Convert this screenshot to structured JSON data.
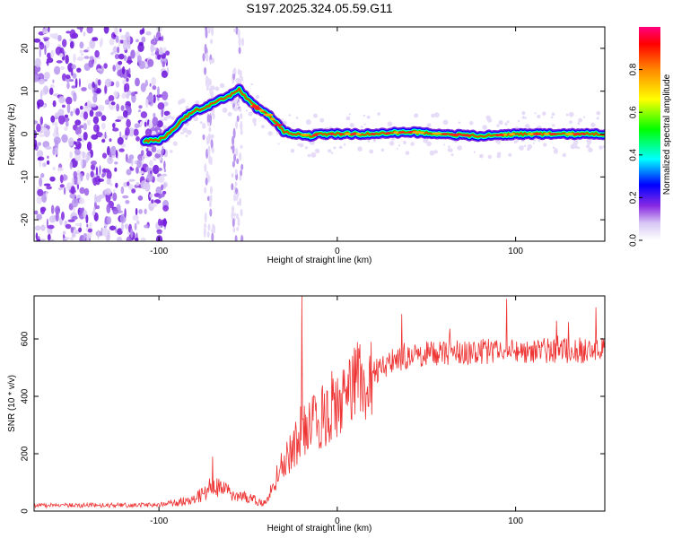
{
  "title": "S197.2025.324.05.59.G11",
  "chart_data": [
    {
      "type": "heatmap",
      "title": "S197.2025.324.05.59.G11",
      "xlabel": "Height of straight line (km)",
      "ylabel": "Frequency (Hz)",
      "xlim": [
        -170,
        150
      ],
      "ylim": [
        -25,
        25
      ],
      "xticks": [
        -100,
        0,
        100
      ],
      "yticks": [
        -20,
        -10,
        0,
        10,
        20
      ],
      "colorbar": {
        "label": "Normalized spectral amplitude",
        "range": [
          0,
          1
        ],
        "ticks": [
          "0.0",
          "0.2",
          "0.4",
          "0.6",
          "0.8"
        ],
        "tick_values": [
          0.0,
          0.2,
          0.4,
          0.6,
          0.8
        ]
      },
      "ridge": {
        "x": [
          -108,
          -100,
          -95,
          -90,
          -85,
          -80,
          -75,
          -70,
          -65,
          -60,
          -55,
          -50,
          -45,
          -40,
          -35,
          -30,
          -25,
          -20,
          -15,
          -10,
          -5,
          0,
          20,
          40,
          60,
          80,
          100,
          150
        ],
        "y": [
          -1.5,
          -1.5,
          0,
          2,
          4,
          5.5,
          6,
          7,
          8,
          9,
          10.5,
          8,
          6,
          5,
          3,
          0.5,
          0,
          0,
          -0.5,
          0,
          0,
          0,
          0,
          0.5,
          0,
          -0.5,
          0,
          0
        ]
      },
      "noise_region": {
        "x_from": -170,
        "x_to": -95,
        "y_from": -25,
        "y_to": 25
      }
    },
    {
      "type": "line",
      "xlabel": "Height of straight line (km)",
      "ylabel": "SNR (10 * v/v)",
      "xlim": [
        -170,
        150
      ],
      "ylim": [
        0,
        750
      ],
      "xticks": [
        -100,
        0,
        100
      ],
      "yticks": [
        0,
        200,
        400,
        600
      ],
      "color": "#ee3333",
      "trend": {
        "x": [
          -170,
          -120,
          -100,
          -90,
          -80,
          -75,
          -70,
          -60,
          -50,
          -40,
          -36,
          -30,
          -25,
          -20,
          -15,
          -10,
          -5,
          0,
          10,
          20,
          30,
          50,
          80,
          100,
          150
        ],
        "y": [
          20,
          20,
          22,
          30,
          45,
          60,
          90,
          65,
          45,
          25,
          90,
          170,
          220,
          280,
          310,
          330,
          350,
          380,
          430,
          480,
          520,
          550,
          555,
          560,
          560
        ]
      },
      "peaks": [
        {
          "x": -20,
          "y": 750
        },
        {
          "x": -70,
          "y": 190
        },
        {
          "x": 95,
          "y": 740
        },
        {
          "x": 145,
          "y": 710
        }
      ]
    }
  ]
}
